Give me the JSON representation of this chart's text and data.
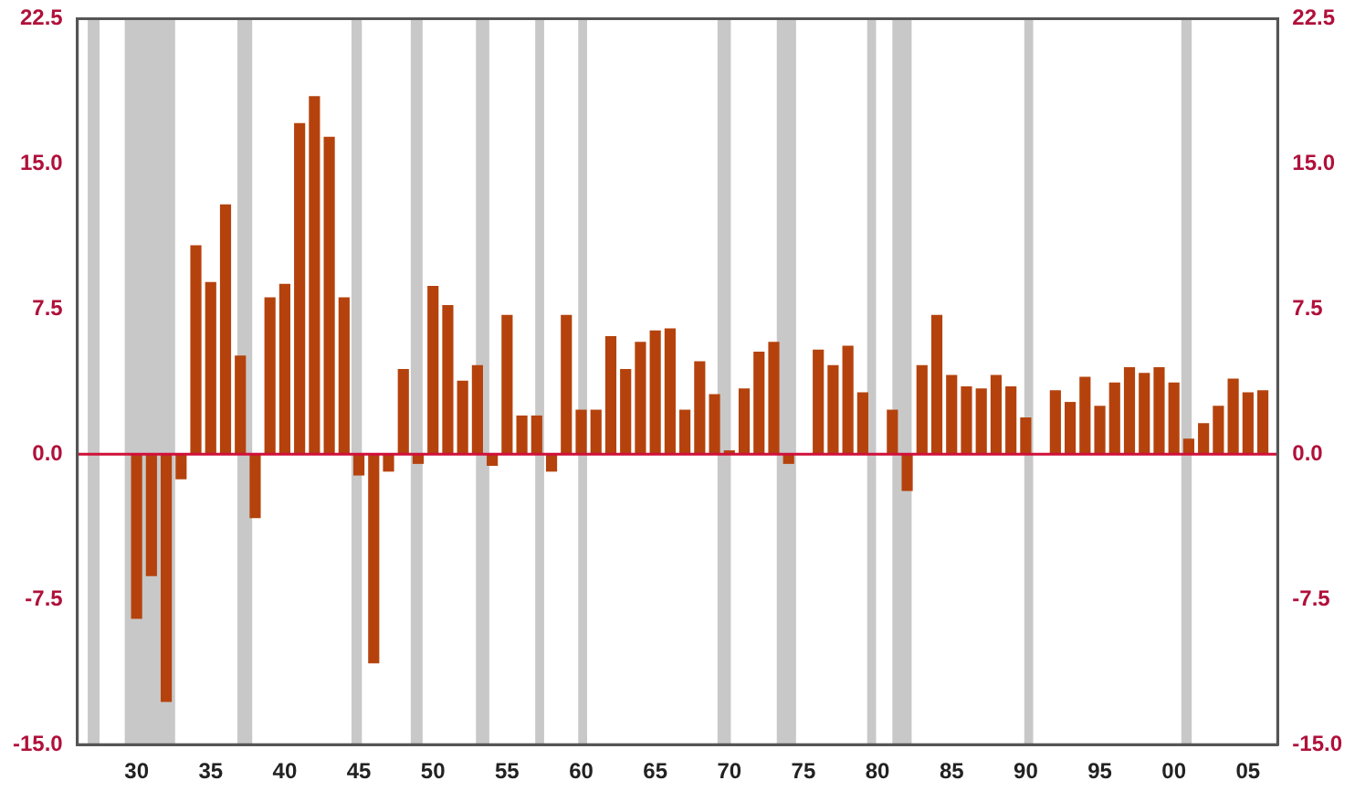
{
  "chart_data": {
    "type": "bar",
    "x": [
      1930,
      1931,
      1932,
      1933,
      1934,
      1935,
      1936,
      1937,
      1938,
      1939,
      1940,
      1941,
      1942,
      1943,
      1944,
      1945,
      1946,
      1947,
      1948,
      1949,
      1950,
      1951,
      1952,
      1953,
      1954,
      1955,
      1956,
      1957,
      1958,
      1959,
      1960,
      1961,
      1962,
      1963,
      1964,
      1965,
      1966,
      1967,
      1968,
      1969,
      1970,
      1971,
      1972,
      1973,
      1974,
      1975,
      1976,
      1977,
      1978,
      1979,
      1980,
      1981,
      1982,
      1983,
      1984,
      1985,
      1986,
      1987,
      1988,
      1989,
      1990,
      1991,
      1992,
      1993,
      1994,
      1995,
      1996,
      1997,
      1998,
      1999,
      2000,
      2001,
      2002,
      2003,
      2004,
      2005,
      2006
    ],
    "values": [
      -8.5,
      -6.3,
      -12.8,
      -1.3,
      10.8,
      8.9,
      12.9,
      5.1,
      -3.3,
      8.1,
      8.8,
      17.1,
      18.5,
      16.4,
      8.1,
      -1.1,
      -10.8,
      -0.9,
      4.4,
      -0.5,
      8.7,
      7.7,
      3.8,
      4.6,
      -0.6,
      7.2,
      2.0,
      2.0,
      -0.9,
      7.2,
      2.3,
      2.3,
      6.1,
      4.4,
      5.8,
      6.4,
      6.5,
      2.3,
      4.8,
      3.1,
      0.2,
      3.4,
      5.3,
      5.8,
      -0.5,
      null,
      5.4,
      4.6,
      5.6,
      3.2,
      null,
      2.3,
      -1.9,
      4.6,
      7.2,
      4.1,
      3.5,
      3.4,
      4.1,
      3.5,
      1.9,
      null,
      3.3,
      2.7,
      4.0,
      2.5,
      3.7,
      4.5,
      4.2,
      4.5,
      3.7,
      0.8,
      1.6,
      2.5,
      3.9,
      3.2,
      3.3
    ],
    "color": "#b5420c",
    "xlim": [
      1926,
      2007
    ],
    "xticks": [
      {
        "value": 1930,
        "label": "30"
      },
      {
        "value": 1935,
        "label": "35"
      },
      {
        "value": 1940,
        "label": "40"
      },
      {
        "value": 1945,
        "label": "45"
      },
      {
        "value": 1950,
        "label": "50"
      },
      {
        "value": 1955,
        "label": "55"
      },
      {
        "value": 1960,
        "label": "60"
      },
      {
        "value": 1965,
        "label": "65"
      },
      {
        "value": 1970,
        "label": "70"
      },
      {
        "value": 1975,
        "label": "75"
      },
      {
        "value": 1980,
        "label": "80"
      },
      {
        "value": 1985,
        "label": "85"
      },
      {
        "value": 1990,
        "label": "90"
      },
      {
        "value": 1995,
        "label": "95"
      },
      {
        "value": 2000,
        "label": "00"
      },
      {
        "value": 2005,
        "label": "05"
      }
    ],
    "ylim": [
      -15,
      22.5
    ],
    "yticks": [
      {
        "value": -15,
        "label": "-15.0"
      },
      {
        "value": -7.5,
        "label": "-7.5"
      },
      {
        "value": 0,
        "label": "0.0"
      },
      {
        "value": 7.5,
        "label": "7.5"
      },
      {
        "value": 15,
        "label": "15.0"
      },
      {
        "value": 22.5,
        "label": "22.5"
      }
    ],
    "y2lim": [
      -15,
      22.5
    ],
    "y2ticks": [
      {
        "value": -15,
        "label": "-15.0"
      },
      {
        "value": -7.5,
        "label": "-7.5"
      },
      {
        "value": 0,
        "label": "0.0"
      },
      {
        "value": 7.5,
        "label": "7.5"
      },
      {
        "value": 15,
        "label": "15.0"
      },
      {
        "value": 22.5,
        "label": "22.5"
      }
    ],
    "ref_lines": [
      {
        "axis": "y",
        "value": 0,
        "color": "#d0103a"
      }
    ],
    "bands": [
      {
        "axis": "x",
        "from": 1926.7,
        "to": 1927.5,
        "color": "#c8c8c8"
      },
      {
        "axis": "x",
        "from": 1929.2,
        "to": 1932.6,
        "color": "#c8c8c8"
      },
      {
        "axis": "x",
        "from": 1936.8,
        "to": 1937.8,
        "color": "#c8c8c8"
      },
      {
        "axis": "x",
        "from": 1944.5,
        "to": 1945.2,
        "color": "#c8c8c8"
      },
      {
        "axis": "x",
        "from": 1948.5,
        "to": 1949.3,
        "color": "#c8c8c8"
      },
      {
        "axis": "x",
        "from": 1952.9,
        "to": 1953.8,
        "color": "#c8c8c8"
      },
      {
        "axis": "x",
        "from": 1956.9,
        "to": 1957.5,
        "color": "#c8c8c8"
      },
      {
        "axis": "x",
        "from": 1959.8,
        "to": 1960.4,
        "color": "#c8c8c8"
      },
      {
        "axis": "x",
        "from": 1969.2,
        "to": 1970.1,
        "color": "#c8c8c8"
      },
      {
        "axis": "x",
        "from": 1973.2,
        "to": 1974.5,
        "color": "#c8c8c8"
      },
      {
        "axis": "x",
        "from": 1979.3,
        "to": 1979.9,
        "color": "#c8c8c8"
      },
      {
        "axis": "x",
        "from": 1981.0,
        "to": 1982.3,
        "color": "#c8c8c8"
      },
      {
        "axis": "x",
        "from": 1989.9,
        "to": 1990.5,
        "color": "#c8c8c8"
      },
      {
        "axis": "x",
        "from": 2000.5,
        "to": 2001.2,
        "color": "#c8c8c8"
      }
    ],
    "grid": false,
    "legend": false
  }
}
